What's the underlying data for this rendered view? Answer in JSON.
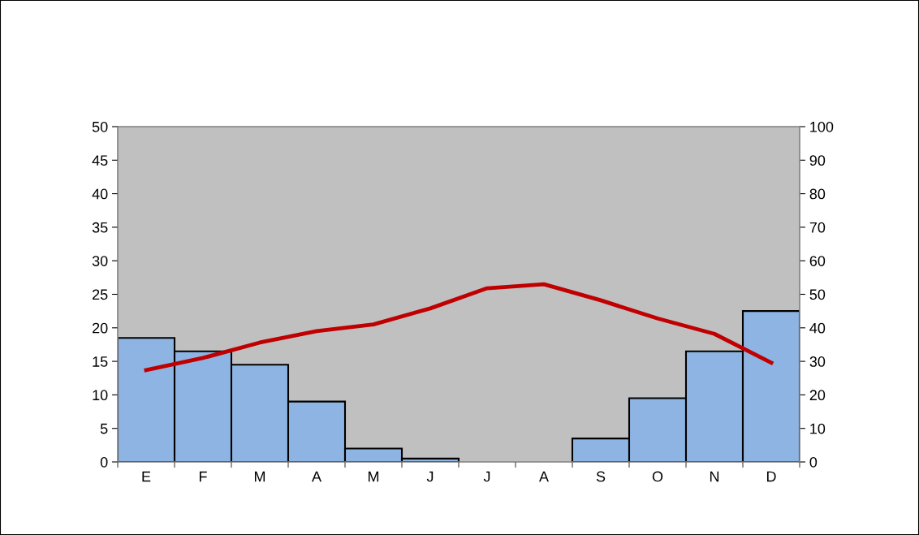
{
  "chart_data": {
    "type": "bar",
    "categories": [
      "E",
      "F",
      "M",
      "A",
      "M",
      "J",
      "J",
      "A",
      "S",
      "O",
      "N",
      "D"
    ],
    "series": [
      {
        "axis": "y2",
        "color": "#8eb4e3",
        "values": [
          37,
          33,
          29,
          18,
          4,
          1,
          0,
          0,
          7,
          19,
          33,
          45
        ]
      },
      {
        "type": "line",
        "axis": "y",
        "color": "#c00000",
        "values": [
          13.7,
          15.5,
          17.8,
          19.5,
          20.5,
          22.9,
          25.9,
          26.5,
          24.1,
          21.4,
          19.1,
          14.8
        ]
      }
    ],
    "ylim": [
      0,
      50
    ],
    "yticks": [
      0,
      5,
      10,
      15,
      20,
      25,
      30,
      35,
      40,
      45,
      50
    ],
    "y2lim": [
      0,
      100
    ],
    "y2ticks": [
      0,
      10,
      20,
      30,
      40,
      50,
      60,
      70,
      80,
      90,
      100
    ],
    "grid": false,
    "legend": false,
    "marker": "none",
    "line_style": "solid"
  }
}
